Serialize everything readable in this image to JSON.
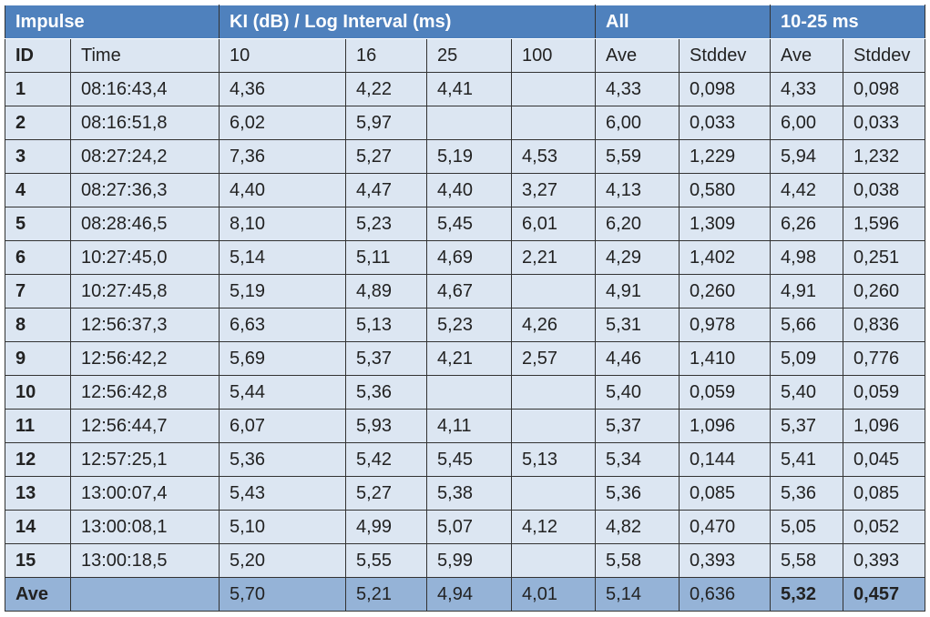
{
  "table": {
    "groups": [
      "Impulse",
      "KI (dB) / Log Interval (ms)",
      "All",
      "10-25 ms"
    ],
    "columns": [
      "ID",
      "Time",
      "10",
      "16",
      "25",
      "100",
      "Ave",
      "Stddev",
      "Ave",
      "Stddev"
    ],
    "rows": [
      [
        "1",
        "08:16:43,4",
        "4,36",
        "4,22",
        "4,41",
        null,
        "4,33",
        "0,098",
        "4,33",
        "0,098"
      ],
      [
        "2",
        "08:16:51,8",
        "6,02",
        "5,97",
        null,
        null,
        "6,00",
        "0,033",
        "6,00",
        "0,033"
      ],
      [
        "3",
        "08:27:24,2",
        "7,36",
        "5,27",
        "5,19",
        "4,53",
        "5,59",
        "1,229",
        "5,94",
        "1,232"
      ],
      [
        "4",
        "08:27:36,3",
        "4,40",
        "4,47",
        "4,40",
        "3,27",
        "4,13",
        "0,580",
        "4,42",
        "0,038"
      ],
      [
        "5",
        "08:28:46,5",
        "8,10",
        "5,23",
        "5,45",
        "6,01",
        "6,20",
        "1,309",
        "6,26",
        "1,596"
      ],
      [
        "6",
        "10:27:45,0",
        "5,14",
        "5,11",
        "4,69",
        "2,21",
        "4,29",
        "1,402",
        "4,98",
        "0,251"
      ],
      [
        "7",
        "10:27:45,8",
        "5,19",
        "4,89",
        "4,67",
        null,
        "4,91",
        "0,260",
        "4,91",
        "0,260"
      ],
      [
        "8",
        "12:56:37,3",
        "6,63",
        "5,13",
        "5,23",
        "4,26",
        "5,31",
        "0,978",
        "5,66",
        "0,836"
      ],
      [
        "9",
        "12:56:42,2",
        "5,69",
        "5,37",
        "4,21",
        "2,57",
        "4,46",
        "1,410",
        "5,09",
        "0,776"
      ],
      [
        "10",
        "12:56:42,8",
        "5,44",
        "5,36",
        null,
        null,
        "5,40",
        "0,059",
        "5,40",
        "0,059"
      ],
      [
        "11",
        "12:56:44,7",
        "6,07",
        "5,93",
        "4,11",
        null,
        "5,37",
        "1,096",
        "5,37",
        "1,096"
      ],
      [
        "12",
        "12:57:25,1",
        "5,36",
        "5,42",
        "5,45",
        "5,13",
        "5,34",
        "0,144",
        "5,41",
        "0,045"
      ],
      [
        "13",
        "13:00:07,4",
        "5,43",
        "5,27",
        "5,38",
        null,
        "5,36",
        "0,085",
        "5,36",
        "0,085"
      ],
      [
        "14",
        "13:00:08,1",
        "5,10",
        "4,99",
        "5,07",
        "4,12",
        "4,82",
        "0,470",
        "5,05",
        "0,052"
      ],
      [
        "15",
        "13:00:18,5",
        "5,20",
        "5,55",
        "5,99",
        null,
        "5,58",
        "0,393",
        "5,58",
        "0,393"
      ]
    ],
    "footer": [
      "Ave",
      null,
      "5,70",
      "5,21",
      "4,94",
      "4,01",
      "5,14",
      "0,636",
      "5,32",
      "0,457"
    ]
  }
}
